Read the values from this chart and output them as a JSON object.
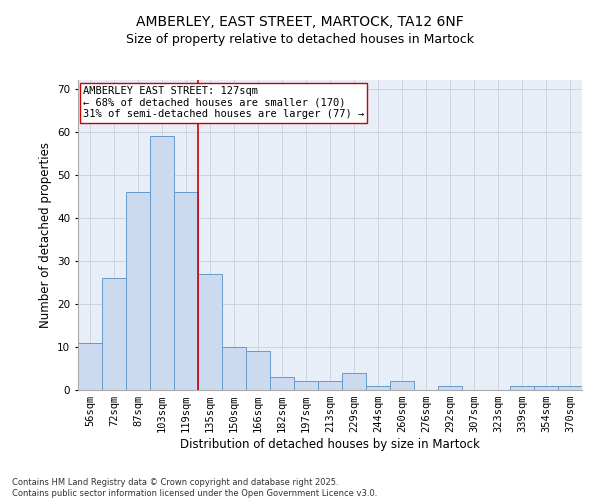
{
  "title_line1": "AMBERLEY, EAST STREET, MARTOCK, TA12 6NF",
  "title_line2": "Size of property relative to detached houses in Martock",
  "xlabel": "Distribution of detached houses by size in Martock",
  "ylabel": "Number of detached properties",
  "categories": [
    "56sqm",
    "72sqm",
    "87sqm",
    "103sqm",
    "119sqm",
    "135sqm",
    "150sqm",
    "166sqm",
    "182sqm",
    "197sqm",
    "213sqm",
    "229sqm",
    "244sqm",
    "260sqm",
    "276sqm",
    "292sqm",
    "307sqm",
    "323sqm",
    "339sqm",
    "354sqm",
    "370sqm"
  ],
  "values": [
    11,
    26,
    46,
    59,
    46,
    27,
    10,
    9,
    3,
    2,
    2,
    4,
    1,
    2,
    0,
    1,
    0,
    0,
    1,
    1,
    1
  ],
  "bar_color": "#ccdaf0",
  "bar_edge_color": "#6699cc",
  "bar_linewidth": 0.7,
  "vline_x": 4.5,
  "vline_color": "#cc0000",
  "vline_linewidth": 1.2,
  "annotation_text": "AMBERLEY EAST STREET: 127sqm\n← 68% of detached houses are smaller (170)\n31% of semi-detached houses are larger (77) →",
  "annotation_box_color": "#ffffff",
  "annotation_box_edge": "#cc0000",
  "ylim": [
    0,
    72
  ],
  "yticks": [
    0,
    10,
    20,
    30,
    40,
    50,
    60,
    70
  ],
  "grid_color": "#c8d0dc",
  "background_color": "#e8eef8",
  "footnote": "Contains HM Land Registry data © Crown copyright and database right 2025.\nContains public sector information licensed under the Open Government Licence v3.0.",
  "title_fontsize": 10,
  "subtitle_fontsize": 9,
  "label_fontsize": 8.5,
  "tick_fontsize": 7.5,
  "annotation_fontsize": 7.5,
  "footnote_fontsize": 6.0
}
